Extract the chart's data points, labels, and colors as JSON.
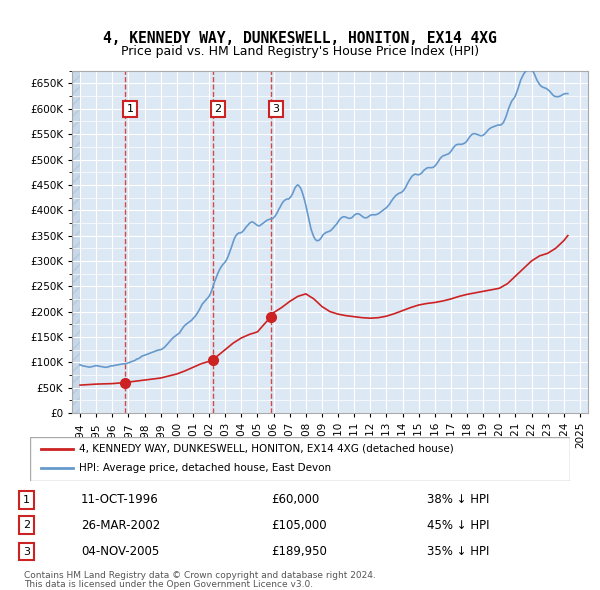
{
  "title": "4, KENNEDY WAY, DUNKESWELL, HONITON, EX14 4XG",
  "subtitle": "Price paid vs. HM Land Registry's House Price Index (HPI)",
  "ylabel_ticks": [
    "£0",
    "£50K",
    "£100K",
    "£150K",
    "£200K",
    "£250K",
    "£300K",
    "£350K",
    "£400K",
    "£450K",
    "£500K",
    "£550K",
    "£600K",
    "£650K"
  ],
  "ytick_values": [
    0,
    50000,
    100000,
    150000,
    200000,
    250000,
    300000,
    350000,
    400000,
    450000,
    500000,
    550000,
    600000,
    650000
  ],
  "ylim": [
    0,
    675000
  ],
  "xlim_start": 1993.5,
  "xlim_end": 2025.5,
  "hpi_color": "#6699cc",
  "price_color": "#cc2222",
  "sale_marker_color": "#cc2222",
  "bg_color": "#dde8f5",
  "grid_color": "#ffffff",
  "hatch_color": "#c8d8e8",
  "sale_points": [
    {
      "year": 1996.78,
      "price": 60000,
      "label": "1",
      "date": "11-OCT-1996",
      "price_str": "£60,000",
      "pct": "38% ↓ HPI"
    },
    {
      "year": 2002.23,
      "price": 105000,
      "label": "2",
      "date": "26-MAR-2002",
      "price_str": "£105,000",
      "pct": "45% ↓ HPI"
    },
    {
      "year": 2005.84,
      "price": 189950,
      "label": "3",
      "date": "04-NOV-2005",
      "price_str": "£189,950",
      "pct": "35% ↓ HPI"
    }
  ],
  "legend_line1": "4, KENNEDY WAY, DUNKESWELL, HONITON, EX14 4XG (detached house)",
  "legend_line2": "HPI: Average price, detached house, East Devon",
  "footer1": "Contains HM Land Registry data © Crown copyright and database right 2024.",
  "footer2": "This data is licensed under the Open Government Licence v3.0.",
  "hpi_data_x": [
    1994.0,
    1994.08,
    1994.17,
    1994.25,
    1994.33,
    1994.42,
    1994.5,
    1994.58,
    1994.67,
    1994.75,
    1994.83,
    1994.92,
    1995.0,
    1995.08,
    1995.17,
    1995.25,
    1995.33,
    1995.42,
    1995.5,
    1995.58,
    1995.67,
    1995.75,
    1995.83,
    1995.92,
    1996.0,
    1996.08,
    1996.17,
    1996.25,
    1996.33,
    1996.42,
    1996.5,
    1996.58,
    1996.67,
    1996.75,
    1996.83,
    1996.92,
    1997.0,
    1997.08,
    1997.17,
    1997.25,
    1997.33,
    1997.42,
    1997.5,
    1997.58,
    1997.67,
    1997.75,
    1997.83,
    1997.92,
    1998.0,
    1998.08,
    1998.17,
    1998.25,
    1998.33,
    1998.42,
    1998.5,
    1998.58,
    1998.67,
    1998.75,
    1998.83,
    1998.92,
    1999.0,
    1999.08,
    1999.17,
    1999.25,
    1999.33,
    1999.42,
    1999.5,
    1999.58,
    1999.67,
    1999.75,
    1999.83,
    1999.92,
    2000.0,
    2000.08,
    2000.17,
    2000.25,
    2000.33,
    2000.42,
    2000.5,
    2000.58,
    2000.67,
    2000.75,
    2000.83,
    2000.92,
    2001.0,
    2001.08,
    2001.17,
    2001.25,
    2001.33,
    2001.42,
    2001.5,
    2001.58,
    2001.67,
    2001.75,
    2001.83,
    2001.92,
    2002.0,
    2002.08,
    2002.17,
    2002.25,
    2002.33,
    2002.42,
    2002.5,
    2002.58,
    2002.67,
    2002.75,
    2002.83,
    2002.92,
    2003.0,
    2003.08,
    2003.17,
    2003.25,
    2003.33,
    2003.42,
    2003.5,
    2003.58,
    2003.67,
    2003.75,
    2003.83,
    2003.92,
    2004.0,
    2004.08,
    2004.17,
    2004.25,
    2004.33,
    2004.42,
    2004.5,
    2004.58,
    2004.67,
    2004.75,
    2004.83,
    2004.92,
    2005.0,
    2005.08,
    2005.17,
    2005.25,
    2005.33,
    2005.42,
    2005.5,
    2005.58,
    2005.67,
    2005.75,
    2005.83,
    2005.92,
    2006.0,
    2006.08,
    2006.17,
    2006.25,
    2006.33,
    2006.42,
    2006.5,
    2006.58,
    2006.67,
    2006.75,
    2006.83,
    2006.92,
    2007.0,
    2007.08,
    2007.17,
    2007.25,
    2007.33,
    2007.42,
    2007.5,
    2007.58,
    2007.67,
    2007.75,
    2007.83,
    2007.92,
    2008.0,
    2008.08,
    2008.17,
    2008.25,
    2008.33,
    2008.42,
    2008.5,
    2008.58,
    2008.67,
    2008.75,
    2008.83,
    2008.92,
    2009.0,
    2009.08,
    2009.17,
    2009.25,
    2009.33,
    2009.42,
    2009.5,
    2009.58,
    2009.67,
    2009.75,
    2009.83,
    2009.92,
    2010.0,
    2010.08,
    2010.17,
    2010.25,
    2010.33,
    2010.42,
    2010.5,
    2010.58,
    2010.67,
    2010.75,
    2010.83,
    2010.92,
    2011.0,
    2011.08,
    2011.17,
    2011.25,
    2011.33,
    2011.42,
    2011.5,
    2011.58,
    2011.67,
    2011.75,
    2011.83,
    2011.92,
    2012.0,
    2012.08,
    2012.17,
    2012.25,
    2012.33,
    2012.42,
    2012.5,
    2012.58,
    2012.67,
    2012.75,
    2012.83,
    2012.92,
    2013.0,
    2013.08,
    2013.17,
    2013.25,
    2013.33,
    2013.42,
    2013.5,
    2013.58,
    2013.67,
    2013.75,
    2013.83,
    2013.92,
    2014.0,
    2014.08,
    2014.17,
    2014.25,
    2014.33,
    2014.42,
    2014.5,
    2014.58,
    2014.67,
    2014.75,
    2014.83,
    2014.92,
    2015.0,
    2015.08,
    2015.17,
    2015.25,
    2015.33,
    2015.42,
    2015.5,
    2015.58,
    2015.67,
    2015.75,
    2015.83,
    2015.92,
    2016.0,
    2016.08,
    2016.17,
    2016.25,
    2016.33,
    2016.42,
    2016.5,
    2016.58,
    2016.67,
    2016.75,
    2016.83,
    2016.92,
    2017.0,
    2017.08,
    2017.17,
    2017.25,
    2017.33,
    2017.42,
    2017.5,
    2017.58,
    2017.67,
    2017.75,
    2017.83,
    2017.92,
    2018.0,
    2018.08,
    2018.17,
    2018.25,
    2018.33,
    2018.42,
    2018.5,
    2018.58,
    2018.67,
    2018.75,
    2018.83,
    2018.92,
    2019.0,
    2019.08,
    2019.17,
    2019.25,
    2019.33,
    2019.42,
    2019.5,
    2019.58,
    2019.67,
    2019.75,
    2019.83,
    2019.92,
    2020.0,
    2020.08,
    2020.17,
    2020.25,
    2020.33,
    2020.42,
    2020.5,
    2020.58,
    2020.67,
    2020.75,
    2020.83,
    2020.92,
    2021.0,
    2021.08,
    2021.17,
    2021.25,
    2021.33,
    2021.42,
    2021.5,
    2021.58,
    2021.67,
    2021.75,
    2021.83,
    2021.92,
    2022.0,
    2022.08,
    2022.17,
    2022.25,
    2022.33,
    2022.42,
    2022.5,
    2022.58,
    2022.67,
    2022.75,
    2022.83,
    2022.92,
    2023.0,
    2023.08,
    2023.17,
    2023.25,
    2023.33,
    2023.42,
    2023.5,
    2023.58,
    2023.67,
    2023.75,
    2023.83,
    2023.92,
    2024.0,
    2024.08,
    2024.17,
    2024.25
  ],
  "hpi_data_y": [
    95000,
    94000,
    93000,
    92500,
    92000,
    91500,
    91000,
    90500,
    91000,
    91500,
    92000,
    93000,
    93500,
    93000,
    92500,
    92000,
    91500,
    91000,
    90500,
    90000,
    90500,
    91000,
    92000,
    93000,
    93000,
    93500,
    94000,
    94500,
    95000,
    95500,
    96000,
    96500,
    97000,
    97000,
    97500,
    98000,
    99000,
    100000,
    101000,
    102000,
    103000,
    104000,
    106000,
    107000,
    108000,
    110000,
    112000,
    113000,
    114000,
    115000,
    116000,
    117000,
    118000,
    119000,
    120000,
    121000,
    122000,
    123000,
    124000,
    124500,
    125000,
    126000,
    128000,
    130000,
    133000,
    136000,
    139000,
    142000,
    145000,
    148000,
    150000,
    152000,
    154000,
    156000,
    158000,
    162000,
    166000,
    170000,
    173000,
    175000,
    177000,
    179000,
    181000,
    183000,
    186000,
    189000,
    192000,
    196000,
    200000,
    205000,
    210000,
    215000,
    218000,
    221000,
    224000,
    227000,
    230000,
    235000,
    242000,
    250000,
    258000,
    265000,
    272000,
    278000,
    284000,
    288000,
    292000,
    295000,
    298000,
    302000,
    308000,
    315000,
    322000,
    330000,
    338000,
    345000,
    350000,
    353000,
    355000,
    355000,
    356000,
    358000,
    361000,
    365000,
    368000,
    371000,
    374000,
    376000,
    377000,
    376000,
    374000,
    372000,
    370000,
    369000,
    370000,
    372000,
    374000,
    376000,
    378000,
    380000,
    381000,
    382000,
    383000,
    383000,
    385000,
    388000,
    392000,
    397000,
    402000,
    407000,
    412000,
    416000,
    419000,
    421000,
    422000,
    422000,
    424000,
    427000,
    432000,
    438000,
    444000,
    448000,
    450000,
    448000,
    444000,
    438000,
    430000,
    420000,
    410000,
    398000,
    385000,
    373000,
    362000,
    354000,
    347000,
    343000,
    340000,
    340000,
    341000,
    344000,
    348000,
    352000,
    354000,
    356000,
    357000,
    358000,
    359000,
    361000,
    364000,
    367000,
    370000,
    373000,
    377000,
    381000,
    384000,
    386000,
    387000,
    387000,
    386000,
    385000,
    384000,
    384000,
    385000,
    387000,
    390000,
    392000,
    393000,
    393000,
    392000,
    390000,
    388000,
    386000,
    385000,
    385000,
    386000,
    388000,
    390000,
    391000,
    391000,
    391000,
    391000,
    392000,
    393000,
    395000,
    397000,
    399000,
    401000,
    403000,
    405000,
    408000,
    411000,
    415000,
    419000,
    423000,
    426000,
    429000,
    431000,
    433000,
    434000,
    435000,
    437000,
    440000,
    444000,
    449000,
    454000,
    459000,
    463000,
    467000,
    469000,
    471000,
    471000,
    470000,
    470000,
    471000,
    473000,
    476000,
    479000,
    481000,
    483000,
    484000,
    484000,
    484000,
    484000,
    485000,
    487000,
    490000,
    494000,
    498000,
    502000,
    505000,
    507000,
    508000,
    509000,
    510000,
    511000,
    513000,
    516000,
    520000,
    524000,
    527000,
    529000,
    530000,
    530000,
    530000,
    530000,
    531000,
    532000,
    534000,
    537000,
    541000,
    545000,
    548000,
    550000,
    551000,
    551000,
    550000,
    549000,
    548000,
    547000,
    547000,
    548000,
    550000,
    553000,
    556000,
    559000,
    561000,
    563000,
    564000,
    565000,
    566000,
    567000,
    568000,
    568000,
    568000,
    570000,
    573000,
    578000,
    585000,
    593000,
    601000,
    608000,
    614000,
    618000,
    621000,
    626000,
    633000,
    641000,
    649000,
    657000,
    663000,
    668000,
    672000,
    675000,
    677000,
    678000,
    678000,
    677000,
    674000,
    669000,
    663000,
    657000,
    652000,
    648000,
    645000,
    643000,
    642000,
    641000,
    640000,
    638000,
    636000,
    633000,
    630000,
    627000,
    625000,
    624000,
    624000,
    624000,
    625000,
    626000,
    628000,
    629000,
    630000,
    630000,
    630000
  ],
  "price_data_x": [
    1994.0,
    1994.5,
    1995.0,
    1995.5,
    1996.0,
    1996.78,
    1997.0,
    1997.5,
    1998.0,
    1998.5,
    1999.0,
    1999.5,
    2000.0,
    2000.5,
    2001.0,
    2001.5,
    2002.0,
    2002.23,
    2002.5,
    2003.0,
    2003.5,
    2004.0,
    2004.5,
    2005.0,
    2005.5,
    2005.84,
    2006.0,
    2006.5,
    2007.0,
    2007.5,
    2008.0,
    2008.5,
    2009.0,
    2009.5,
    2010.0,
    2010.5,
    2011.0,
    2011.5,
    2012.0,
    2012.5,
    2013.0,
    2013.5,
    2014.0,
    2014.5,
    2015.0,
    2015.5,
    2016.0,
    2016.5,
    2017.0,
    2017.5,
    2018.0,
    2018.5,
    2019.0,
    2019.5,
    2020.0,
    2020.5,
    2021.0,
    2021.5,
    2022.0,
    2022.5,
    2023.0,
    2023.5,
    2024.0,
    2024.25
  ],
  "price_data_y": [
    55000,
    56000,
    57000,
    57500,
    58000,
    60000,
    61000,
    63000,
    65000,
    67000,
    69000,
    73000,
    77000,
    83000,
    90000,
    97000,
    102000,
    105000,
    112000,
    125000,
    138000,
    148000,
    155000,
    160000,
    178000,
    189950,
    198000,
    208000,
    220000,
    230000,
    235000,
    225000,
    210000,
    200000,
    195000,
    192000,
    190000,
    188000,
    187000,
    188000,
    191000,
    196000,
    202000,
    208000,
    213000,
    216000,
    218000,
    221000,
    225000,
    230000,
    234000,
    237000,
    240000,
    243000,
    246000,
    255000,
    270000,
    285000,
    300000,
    310000,
    315000,
    325000,
    340000,
    350000
  ]
}
